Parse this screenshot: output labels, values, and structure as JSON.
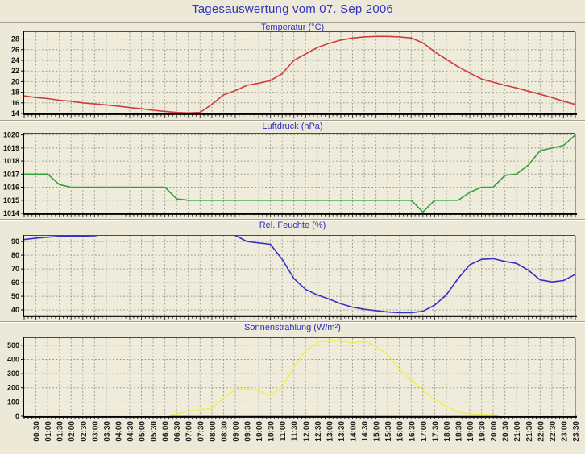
{
  "page": {
    "title": "Tagesauswertung vom 07. Sep 2006",
    "title_color": "#3434be",
    "background": "#ece9d8",
    "grid_color": "#9b9b90"
  },
  "x_axis": {
    "interval_minutes": 30,
    "tick_labels": [
      "00:30",
      "01:00",
      "01:30",
      "02:00",
      "02:30",
      "03:00",
      "03:30",
      "04:00",
      "04:30",
      "05:00",
      "05:30",
      "06:00",
      "06:30",
      "07:00",
      "07:30",
      "08:00",
      "08:30",
      "09:00",
      "09:30",
      "10:00",
      "10:30",
      "11:00",
      "11:30",
      "12:00",
      "12:30",
      "13:00",
      "13:30",
      "14:00",
      "14:30",
      "15:00",
      "15:30",
      "16:00",
      "16:30",
      "17:00",
      "17:30",
      "18:00",
      "18:30",
      "19:00",
      "19:30",
      "20:00",
      "20:30",
      "21:00",
      "21:30",
      "22:00",
      "22:30",
      "23:00",
      "23:30"
    ]
  },
  "chart_data": [
    {
      "type": "line",
      "title": "Temperatur (°C)",
      "color": "#d03c3c",
      "x_start": "00:00",
      "x_step_minutes": 30,
      "ylim": [
        14,
        29.3
      ],
      "yticks": [
        14,
        16,
        18,
        20,
        22,
        24,
        26,
        28
      ],
      "values": [
        17.3,
        17.0,
        16.8,
        16.5,
        16.3,
        16.0,
        15.8,
        15.6,
        15.4,
        15.1,
        14.9,
        14.6,
        14.4,
        14.2,
        14.1,
        14.2,
        15.7,
        17.5,
        18.3,
        19.3,
        19.7,
        20.2,
        21.5,
        24.0,
        25.2,
        26.4,
        27.2,
        27.8,
        28.2,
        28.4,
        28.5,
        28.5,
        28.4,
        28.2,
        27.3,
        25.6,
        24.2,
        22.8,
        21.6,
        20.5,
        19.9,
        19.3,
        18.8,
        18.2,
        17.6,
        17.0,
        16.3,
        15.7
      ]
    },
    {
      "type": "line",
      "title": "Luftdruck (hPa)",
      "color": "#33a13c",
      "x_start": "00:00",
      "x_step_minutes": 30,
      "ylim": [
        1014,
        1020.1
      ],
      "yticks": [
        1014,
        1015,
        1016,
        1017,
        1018,
        1019,
        1020
      ],
      "values": [
        1017,
        1017,
        1017,
        1016.2,
        1016,
        1016,
        1016,
        1016,
        1016,
        1016,
        1016,
        1016,
        1016,
        1015.1,
        1015,
        1015,
        1015,
        1015,
        1015,
        1015,
        1015,
        1015,
        1015,
        1015,
        1015,
        1015,
        1015,
        1015,
        1015,
        1015,
        1015,
        1015,
        1015,
        1015,
        1014.1,
        1015,
        1015,
        1015,
        1015.6,
        1016,
        1016,
        1016.9,
        1017,
        1017.7,
        1018.8,
        1019,
        1019.2,
        1020
      ]
    },
    {
      "type": "line",
      "title": "Rel. Feuchte (%)",
      "color": "#3232c8",
      "x_start": "00:00",
      "x_step_minutes": 30,
      "ylim": [
        35.9,
        94.2
      ],
      "yticks": [
        40,
        50,
        60,
        70,
        80,
        90
      ],
      "values": [
        91.5,
        92.5,
        93.2,
        93.8,
        94,
        94,
        94.2,
        95.5,
        96,
        96,
        96,
        96,
        96,
        96,
        96,
        96,
        96,
        96,
        94.5,
        90,
        89,
        88,
        77,
        63,
        55,
        51,
        48,
        44.5,
        42,
        40.5,
        39.5,
        38.5,
        38,
        38,
        39,
        43.5,
        51,
        63,
        73,
        77,
        77.5,
        75.5,
        74,
        69,
        62,
        60.5,
        61.5,
        66
      ]
    },
    {
      "type": "line",
      "title": "Sonnenstrahlung (W/m²)",
      "color": "#eeee60",
      "x_start": "00:00",
      "x_step_minutes": 30,
      "ylim": [
        0,
        550
      ],
      "yticks": [
        0,
        100,
        200,
        300,
        400,
        500
      ],
      "values": [
        0,
        0,
        0,
        0,
        0,
        0,
        0,
        0,
        0,
        0,
        0,
        0,
        0,
        15,
        38,
        47,
        55,
        125,
        190,
        194,
        178,
        142,
        205,
        345,
        462,
        520,
        536,
        532,
        515,
        528,
        492,
        435,
        330,
        255,
        185,
        112,
        72,
        30,
        16,
        13,
        10,
        0,
        0,
        0,
        0,
        0,
        0,
        0
      ]
    }
  ]
}
